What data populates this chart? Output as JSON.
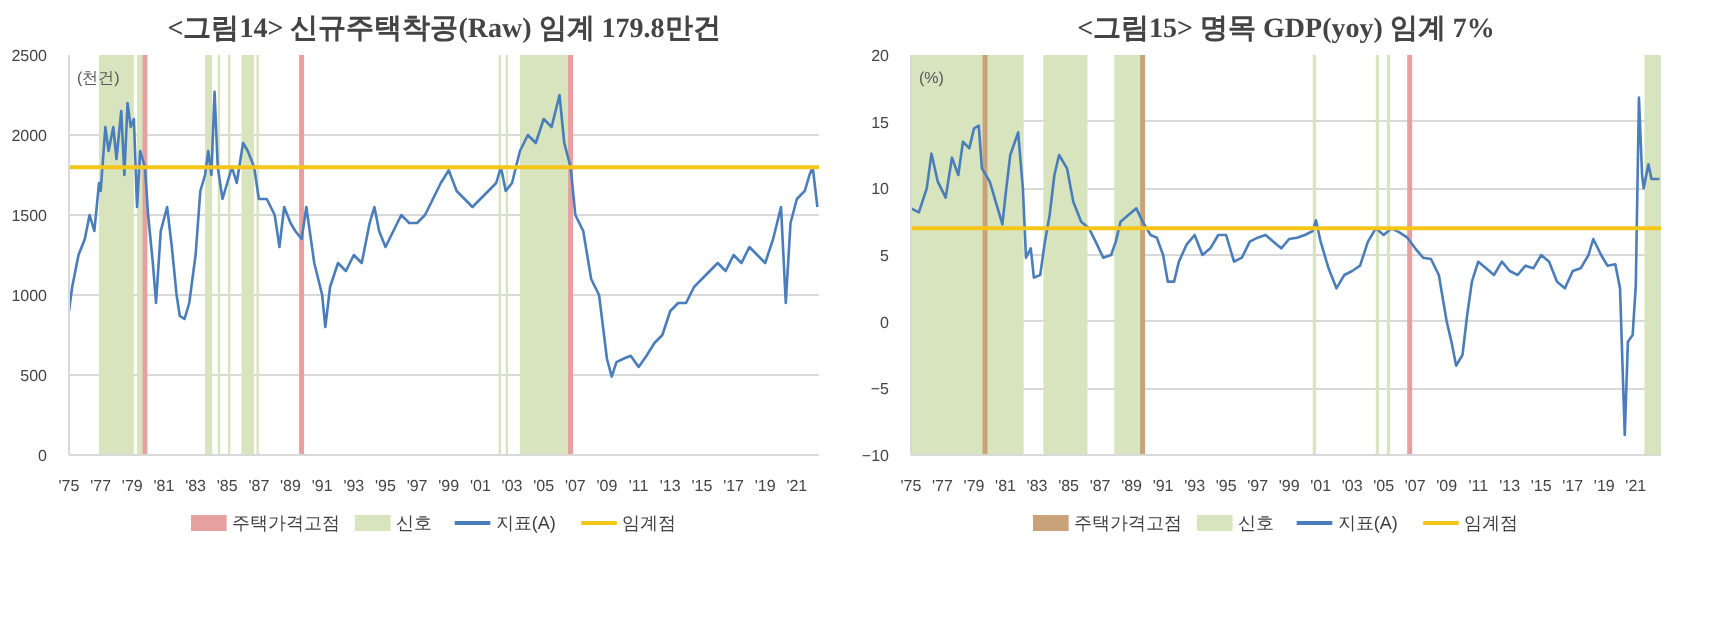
{
  "chart_data": [
    {
      "type": "line",
      "title": "<그림14> 신규주택착공(Raw) 임계 179.8만건",
      "ylabel": "(천건)",
      "xlim": [
        1975,
        2022.4
      ],
      "ylim": [
        0,
        2500
      ],
      "yticks": [
        0,
        500,
        1000,
        1500,
        2000,
        2500
      ],
      "xticks": [
        {
          "value": 1975,
          "label": "'75"
        },
        {
          "value": 1977,
          "label": "'77"
        },
        {
          "value": 1979,
          "label": "'79"
        },
        {
          "value": 1981,
          "label": "'81"
        },
        {
          "value": 1983,
          "label": "'83"
        },
        {
          "value": 1985,
          "label": "'85"
        },
        {
          "value": 1987,
          "label": "'87"
        },
        {
          "value": 1989,
          "label": "'89"
        },
        {
          "value": 1991,
          "label": "'91"
        },
        {
          "value": 1993,
          "label": "'93"
        },
        {
          "value": 1995,
          "label": "'95"
        },
        {
          "value": 1997,
          "label": "'97"
        },
        {
          "value": 1999,
          "label": "'99"
        },
        {
          "value": 2001,
          "label": "'01"
        },
        {
          "value": 2003,
          "label": "'03"
        },
        {
          "value": 2005,
          "label": "'05"
        },
        {
          "value": 2007,
          "label": "'07"
        },
        {
          "value": 2009,
          "label": "'09"
        },
        {
          "value": 2011,
          "label": "'11"
        },
        {
          "value": 2013,
          "label": "'13"
        },
        {
          "value": 2015,
          "label": "'15"
        },
        {
          "value": 2017,
          "label": "'17"
        },
        {
          "value": 2019,
          "label": "'19"
        },
        {
          "value": 2021,
          "label": "'21"
        }
      ],
      "grid": "y",
      "legend": "bottom",
      "series": [
        {
          "name": "지표(A)",
          "color": "#4a7ebb",
          "x": [
            1975.0,
            1975.2,
            1975.6,
            1976.0,
            1976.3,
            1976.6,
            1976.9,
            1977.0,
            1977.3,
            1977.5,
            1977.8,
            1978.0,
            1978.3,
            1978.5,
            1978.7,
            1978.9,
            1979.1,
            1979.3,
            1979.5,
            1979.8,
            1980.0,
            1980.3,
            1980.5,
            1980.8,
            1981.2,
            1981.5,
            1981.8,
            1982.0,
            1982.3,
            1982.6,
            1983.0,
            1983.3,
            1983.6,
            1983.8,
            1984.0,
            1984.2,
            1984.4,
            1984.7,
            1985.0,
            1985.3,
            1985.6,
            1986.0,
            1986.3,
            1986.7,
            1987.0,
            1987.5,
            1988.0,
            1988.3,
            1988.6,
            1989.0,
            1989.3,
            1989.7,
            1990.0,
            1990.5,
            1991.0,
            1991.2,
            1991.5,
            1992.0,
            1992.5,
            1993.0,
            1993.5,
            1994.0,
            1994.3,
            1994.6,
            1995.0,
            1995.5,
            1996.0,
            1996.5,
            1997.0,
            1997.5,
            1998.0,
            1998.5,
            1999.0,
            1999.5,
            2000.0,
            2000.5,
            2001.0,
            2001.5,
            2002.0,
            2002.3,
            2002.6,
            2003.0,
            2003.5,
            2004.0,
            2004.5,
            2005.0,
            2005.5,
            2006.0,
            2006.3,
            2006.7,
            2007.0,
            2007.5,
            2008.0,
            2008.5,
            2009.0,
            2009.3,
            2009.6,
            2010.0,
            2010.5,
            2011.0,
            2011.5,
            2012.0,
            2012.5,
            2013.0,
            2013.5,
            2014.0,
            2014.5,
            2015.0,
            2015.5,
            2016.0,
            2016.5,
            2017.0,
            2017.5,
            2018.0,
            2018.5,
            2019.0,
            2019.5,
            2020.0,
            2020.3,
            2020.6,
            2021.0,
            2021.5,
            2021.8,
            2022.0,
            2022.3
          ],
          "values": [
            900,
            1050,
            1250,
            1350,
            1500,
            1400,
            1700,
            1650,
            2050,
            1900,
            2050,
            1850,
            2150,
            1750,
            2200,
            2050,
            2100,
            1550,
            1900,
            1800,
            1500,
            1200,
            950,
            1400,
            1550,
            1300,
            1000,
            870,
            850,
            950,
            1250,
            1650,
            1750,
            1900,
            1750,
            2270,
            1800,
            1600,
            1700,
            1800,
            1700,
            1950,
            1900,
            1800,
            1600,
            1600,
            1500,
            1300,
            1550,
            1450,
            1400,
            1350,
            1550,
            1200,
            1000,
            800,
            1050,
            1200,
            1150,
            1250,
            1200,
            1450,
            1550,
            1400,
            1300,
            1400,
            1500,
            1450,
            1450,
            1500,
            1600,
            1700,
            1780,
            1650,
            1600,
            1550,
            1600,
            1650,
            1700,
            1800,
            1650,
            1700,
            1900,
            2000,
            1950,
            2100,
            2050,
            2250,
            1950,
            1800,
            1500,
            1400,
            1100,
            1000,
            600,
            490,
            580,
            600,
            620,
            550,
            620,
            700,
            750,
            900,
            950,
            950,
            1050,
            1100,
            1150,
            1200,
            1150,
            1250,
            1200,
            1300,
            1250,
            1200,
            1350,
            1550,
            950,
            1450,
            1600,
            1650,
            1750,
            1800,
            1550
          ]
        }
      ],
      "ref_lines": [
        {
          "axis": "x",
          "value": 1979.8,
          "label": "주택가격고점",
          "color": "#e6a0a0"
        },
        {
          "axis": "x",
          "value": 1989.7,
          "color": "#e6a0a0"
        },
        {
          "axis": "x",
          "value": 2006.7,
          "color": "#e6a0a0"
        },
        {
          "axis": "y",
          "value": 1798,
          "label": "임계점",
          "color": "#f5c518"
        }
      ],
      "bands": [
        {
          "axis": "x",
          "from": 1976.9,
          "to": 1979.1,
          "label": "신호",
          "color": "#d7e4bd"
        },
        {
          "axis": "x",
          "from": 1979.3,
          "to": 1979.7,
          "color": "#d7e4bd"
        },
        {
          "axis": "x",
          "from": 1983.6,
          "to": 1984.05,
          "color": "#d7e4bd"
        },
        {
          "axis": "x",
          "from": 1984.4,
          "to": 1984.55,
          "color": "#d7e4bd"
        },
        {
          "axis": "x",
          "from": 1985.05,
          "to": 1985.2,
          "color": "#d7e4bd"
        },
        {
          "axis": "x",
          "from": 1985.9,
          "to": 1986.7,
          "color": "#d7e4bd"
        },
        {
          "axis": "x",
          "from": 1986.85,
          "to": 1987.0,
          "color": "#d7e4bd"
        },
        {
          "axis": "x",
          "from": 2002.15,
          "to": 2002.3,
          "color": "#d7e4bd"
        },
        {
          "axis": "x",
          "from": 2002.6,
          "to": 2002.75,
          "color": "#d7e4bd"
        },
        {
          "axis": "x",
          "from": 2003.5,
          "to": 2006.7,
          "color": "#d7e4bd"
        }
      ]
    },
    {
      "type": "line",
      "title": "<그림15> 명목 GDP(yoy) 임계 7%",
      "ylabel": "(%)",
      "xlim": [
        1975,
        2022.6
      ],
      "ylim": [
        -10,
        20
      ],
      "yticks": [
        -10,
        -5,
        0,
        5,
        10,
        15,
        20
      ],
      "xticks": [
        {
          "value": 1975,
          "label": "'75"
        },
        {
          "value": 1977,
          "label": "'77"
        },
        {
          "value": 1979,
          "label": "'79"
        },
        {
          "value": 1981,
          "label": "'81"
        },
        {
          "value": 1983,
          "label": "'83"
        },
        {
          "value": 1985,
          "label": "'85"
        },
        {
          "value": 1987,
          "label": "'87"
        },
        {
          "value": 1989,
          "label": "'89"
        },
        {
          "value": 1991,
          "label": "'91"
        },
        {
          "value": 1993,
          "label": "'93"
        },
        {
          "value": 1995,
          "label": "'95"
        },
        {
          "value": 1997,
          "label": "'97"
        },
        {
          "value": 1999,
          "label": "'99"
        },
        {
          "value": 2001,
          "label": "'01"
        },
        {
          "value": 2003,
          "label": "'03"
        },
        {
          "value": 2005,
          "label": "'05"
        },
        {
          "value": 2007,
          "label": "'07"
        },
        {
          "value": 2009,
          "label": "'09"
        },
        {
          "value": 2011,
          "label": "'11"
        },
        {
          "value": 2013,
          "label": "'13"
        },
        {
          "value": 2015,
          "label": "'15"
        },
        {
          "value": 2017,
          "label": "'17"
        },
        {
          "value": 2019,
          "label": "'19"
        },
        {
          "value": 2021,
          "label": "'21"
        }
      ],
      "grid": "y",
      "legend": "bottom",
      "series": [
        {
          "name": "지표(A)",
          "color": "#4a7ebb",
          "x": [
            1975.0,
            1975.5,
            1976.0,
            1976.3,
            1976.7,
            1977.2,
            1977.6,
            1978.0,
            1978.3,
            1978.7,
            1979.0,
            1979.3,
            1979.5,
            1980.0,
            1980.5,
            1980.8,
            1981.0,
            1981.3,
            1981.8,
            1982.1,
            1982.3,
            1982.6,
            1982.8,
            1983.2,
            1983.5,
            1983.8,
            1984.1,
            1984.4,
            1984.9,
            1985.3,
            1985.8,
            1986.3,
            1986.8,
            1987.2,
            1987.7,
            1988.0,
            1988.3,
            1988.8,
            1989.3,
            1989.7,
            1990.2,
            1990.6,
            1991.0,
            1991.3,
            1991.7,
            1992.0,
            1992.5,
            1993.0,
            1993.5,
            1994.0,
            1994.5,
            1995.0,
            1995.5,
            1996.0,
            1996.5,
            1997.0,
            1997.5,
            1998.0,
            1998.5,
            1999.0,
            1999.5,
            2000.0,
            2000.5,
            2000.7,
            2001.0,
            2001.5,
            2002.0,
            2002.5,
            2003.0,
            2003.5,
            2004.0,
            2004.5,
            2005.0,
            2005.5,
            2006.0,
            2006.5,
            2007.0,
            2007.5,
            2008.0,
            2008.5,
            2009.0,
            2009.3,
            2009.6,
            2010.0,
            2010.3,
            2010.6,
            2011.0,
            2011.5,
            2012.0,
            2012.5,
            2013.0,
            2013.5,
            2014.0,
            2014.5,
            2015.0,
            2015.5,
            2016.0,
            2016.5,
            2017.0,
            2017.5,
            2018.0,
            2018.3,
            2018.8,
            2019.2,
            2019.7,
            2020.0,
            2020.3,
            2020.5,
            2020.8,
            2021.0,
            2021.2,
            2021.4,
            2021.5,
            2021.8,
            2022.0,
            2022.5
          ],
          "values": [
            8.5,
            8.2,
            10,
            12.6,
            10.5,
            9.3,
            12.3,
            11,
            13.5,
            13,
            14.5,
            14.7,
            11.5,
            10.5,
            8.5,
            7.3,
            9.5,
            12.5,
            14.2,
            10,
            4.8,
            5.5,
            3.3,
            3.5,
            6,
            8,
            11,
            12.5,
            11.5,
            9,
            7.5,
            7,
            5.8,
            4.8,
            5,
            6,
            7.5,
            8,
            8.5,
            7.5,
            6.5,
            6.3,
            5,
            3,
            3,
            4.5,
            5.8,
            6.5,
            5,
            5.5,
            6.5,
            6.5,
            4.5,
            4.8,
            6,
            6.3,
            6.5,
            6,
            5.5,
            6.2,
            6.3,
            6.5,
            6.8,
            7.6,
            6,
            4,
            2.5,
            3.5,
            3.8,
            4.2,
            6,
            7,
            6.5,
            7,
            6.7,
            6.3,
            5.5,
            4.8,
            4.7,
            3.5,
            0,
            -1.5,
            -3.3,
            -2.5,
            0.5,
            3,
            4.5,
            4,
            3.5,
            4.5,
            3.8,
            3.5,
            4.2,
            4,
            5,
            4.5,
            3,
            2.5,
            3.8,
            4,
            5,
            6.2,
            5,
            4.2,
            4.3,
            2.5,
            -8.5,
            -1.5,
            -1,
            2.7,
            16.8,
            11,
            10,
            11.8,
            10.7,
            10.7
          ]
        }
      ],
      "ref_lines": [
        {
          "axis": "x",
          "value": 1979.7,
          "label": "주택가격고점",
          "color": "#c9a27a"
        },
        {
          "axis": "x",
          "value": 1989.7,
          "color": "#c9a27a"
        },
        {
          "axis": "x",
          "value": 2006.65,
          "color": "#e6a0a0"
        },
        {
          "axis": "y",
          "value": 7,
          "label": "임계점",
          "color": "#f5c518"
        }
      ],
      "bands": [
        {
          "axis": "x",
          "from": 1975,
          "to": 1982.15,
          "label": "신호",
          "color": "#d7e4bd"
        },
        {
          "axis": "x",
          "from": 1983.4,
          "to": 1986.2,
          "color": "#d7e4bd"
        },
        {
          "axis": "x",
          "from": 1987.9,
          "to": 1989.6,
          "color": "#d7e4bd"
        },
        {
          "axis": "x",
          "from": 2000.5,
          "to": 2000.7,
          "color": "#d7e4bd"
        },
        {
          "axis": "x",
          "from": 2004.5,
          "to": 2004.7,
          "color": "#d7e4bd"
        },
        {
          "axis": "x",
          "from": 2005.2,
          "to": 2005.4,
          "color": "#d7e4bd"
        },
        {
          "axis": "x",
          "from": 2021.55,
          "to": 2022.6,
          "color": "#d7e4bd"
        }
      ]
    }
  ]
}
